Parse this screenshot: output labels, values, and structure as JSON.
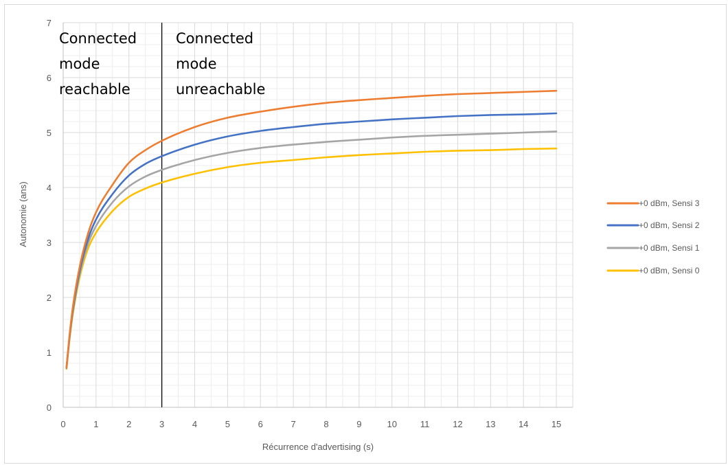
{
  "chart_data": {
    "type": "line",
    "title": "",
    "xlabel": "Récurrence d'advertising (s)",
    "ylabel": "Autonomie (ans)",
    "xlim": [
      0,
      15.5
    ],
    "ylim": [
      0,
      7
    ],
    "x_ticks": [
      "0",
      "1",
      "2",
      "3",
      "4",
      "5",
      "6",
      "7",
      "8",
      "9",
      "10",
      "11",
      "12",
      "13",
      "14",
      "15"
    ],
    "y_ticks": [
      "0",
      "1",
      "2",
      "3",
      "4",
      "5",
      "6",
      "7"
    ],
    "grid": true,
    "legend_position": "right",
    "vertical_marker": {
      "x": 3
    },
    "annotations": [
      {
        "lines": [
          "Connected",
          "mode",
          "reachable"
        ]
      },
      {
        "lines": [
          "Connected",
          "mode",
          "unreachable"
        ]
      }
    ],
    "x": [
      0.1,
      0.2,
      0.3,
      0.5,
      0.75,
      1,
      1.5,
      2,
      2.5,
      3,
      4,
      5,
      6,
      7,
      8,
      9,
      10,
      11,
      12,
      13,
      14,
      15
    ],
    "series": [
      {
        "name": "+0 dBm, Sensi 3",
        "color": "#ed7d31",
        "values": [
          0.72,
          1.35,
          1.85,
          2.55,
          3.15,
          3.55,
          4.05,
          4.45,
          4.68,
          4.85,
          5.1,
          5.27,
          5.38,
          5.47,
          5.54,
          5.59,
          5.63,
          5.67,
          5.7,
          5.72,
          5.74,
          5.76
        ]
      },
      {
        "name": "+0 dBm, Sensi 2",
        "color": "#4472c4",
        "values": [
          0.72,
          1.32,
          1.8,
          2.48,
          3.05,
          3.42,
          3.88,
          4.22,
          4.43,
          4.57,
          4.78,
          4.93,
          5.03,
          5.1,
          5.16,
          5.2,
          5.24,
          5.27,
          5.3,
          5.32,
          5.33,
          5.35
        ]
      },
      {
        "name": "+0 dBm, Sensi 1",
        "color": "#a5a5a5",
        "values": [
          0.71,
          1.3,
          1.76,
          2.42,
          2.97,
          3.3,
          3.73,
          4.02,
          4.2,
          4.32,
          4.5,
          4.63,
          4.72,
          4.78,
          4.83,
          4.87,
          4.91,
          4.94,
          4.96,
          4.98,
          5.0,
          5.02
        ]
      },
      {
        "name": "+0 dBm, Sensi 0",
        "color": "#ffc000",
        "values": [
          0.7,
          1.27,
          1.72,
          2.36,
          2.88,
          3.18,
          3.57,
          3.83,
          3.98,
          4.09,
          4.25,
          4.37,
          4.45,
          4.5,
          4.55,
          4.59,
          4.62,
          4.65,
          4.67,
          4.68,
          4.7,
          4.71
        ]
      }
    ]
  }
}
